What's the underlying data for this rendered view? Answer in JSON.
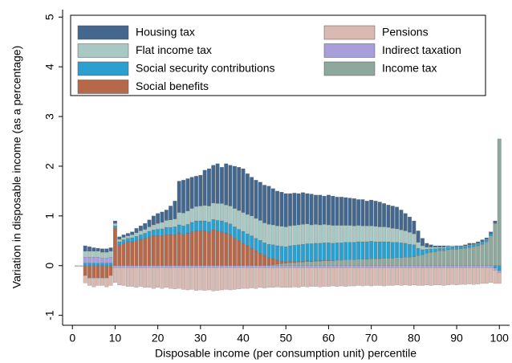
{
  "chart_data": {
    "type": "stacked_bar",
    "xlabel": "Disposable income (per consumption unit) percentile",
    "ylabel": "Variation in disposable income (as a percentage)",
    "xlim": [
      -2.3,
      102.4
    ],
    "ylim": [
      -1.2,
      5.15
    ],
    "xticks": [
      0,
      10,
      20,
      30,
      40,
      50,
      60,
      70,
      80,
      90,
      100
    ],
    "yticks": [
      -1,
      0,
      1,
      2,
      3,
      4,
      5
    ],
    "x": [
      1,
      2,
      3,
      4,
      5,
      6,
      7,
      8,
      9,
      10,
      11,
      12,
      13,
      14,
      15,
      16,
      17,
      18,
      19,
      20,
      21,
      22,
      23,
      24,
      25,
      26,
      27,
      28,
      29,
      30,
      31,
      32,
      33,
      34,
      35,
      36,
      37,
      38,
      39,
      40,
      41,
      42,
      43,
      44,
      45,
      46,
      47,
      48,
      49,
      50,
      51,
      52,
      53,
      54,
      55,
      56,
      57,
      58,
      59,
      60,
      61,
      62,
      63,
      64,
      65,
      66,
      67,
      68,
      69,
      70,
      71,
      72,
      73,
      74,
      75,
      76,
      77,
      78,
      79,
      80,
      81,
      82,
      83,
      84,
      85,
      86,
      87,
      88,
      89,
      90,
      91,
      92,
      93,
      94,
      95,
      96,
      97,
      98,
      99,
      100
    ],
    "series": [
      {
        "name": "Income tax",
        "color": "#8fa89d",
        "values": [
          0,
          0,
          0,
          0,
          0,
          0,
          0,
          0,
          0,
          0,
          0,
          0,
          0,
          0,
          0,
          0,
          0,
          0,
          0,
          0,
          0,
          0,
          0,
          0,
          0,
          0,
          0,
          0,
          0,
          0,
          0,
          0,
          0,
          0,
          0,
          0,
          0,
          0,
          0,
          0,
          0,
          0,
          0,
          0,
          0,
          0.01,
          0.02,
          0.03,
          0.04,
          0.05,
          0.06,
          0.06,
          0.07,
          0.07,
          0.08,
          0.08,
          0.09,
          0.09,
          0.1,
          0.1,
          0.1,
          0.11,
          0.11,
          0.12,
          0.12,
          0.12,
          0.13,
          0.13,
          0.13,
          0.14,
          0.14,
          0.14,
          0.15,
          0.15,
          0.15,
          0.16,
          0.16,
          0.17,
          0.17,
          0.18,
          0.2,
          0.22,
          0.25,
          0.27,
          0.28,
          0.3,
          0.3,
          0.32,
          0.33,
          0.33,
          0.34,
          0.35,
          0.36,
          0.38,
          0.4,
          0.43,
          0.48,
          0.6,
          0.85,
          2.55
        ]
      },
      {
        "name": "Social benefits",
        "color": "#b5694a",
        "values": [
          0,
          0,
          -0.2,
          -0.25,
          -0.25,
          -0.25,
          -0.25,
          -0.25,
          -0.2,
          0.75,
          0.42,
          0.45,
          0.47,
          0.48,
          0.5,
          0.52,
          0.55,
          0.58,
          0.6,
          0.6,
          0.6,
          0.62,
          0.62,
          0.62,
          0.65,
          0.62,
          0.65,
          0.68,
          0.7,
          0.7,
          0.7,
          0.68,
          0.72,
          0.7,
          0.68,
          0.65,
          0.62,
          0.55,
          0.5,
          0.45,
          0.4,
          0.35,
          0.3,
          0.25,
          0.2,
          0.15,
          0.12,
          0.08,
          0.05,
          0.03,
          0.02,
          0.02,
          0.02,
          0.02,
          0.02,
          0.01,
          0.01,
          0.01,
          0.01,
          0.01,
          0,
          0,
          0,
          0,
          0,
          0,
          0,
          0,
          0,
          0,
          0,
          0,
          0,
          0,
          0,
          0,
          0,
          0,
          0,
          0,
          0,
          0,
          0,
          0,
          0,
          0,
          0,
          0,
          0,
          0,
          0,
          0,
          0,
          0,
          0,
          0,
          0,
          0,
          0,
          0
        ]
      },
      {
        "name": "Social security contributions",
        "color": "#2b9fcd",
        "values": [
          0,
          0,
          0.05,
          0.05,
          0.05,
          0.05,
          0.05,
          0.05,
          0.05,
          0.05,
          0.06,
          0.07,
          0.08,
          0.08,
          0.09,
          0.1,
          0.1,
          0.11,
          0.12,
          0.13,
          0.14,
          0.15,
          0.15,
          0.16,
          0.17,
          0.18,
          0.18,
          0.19,
          0.2,
          0.2,
          0.2,
          0.2,
          0.21,
          0.21,
          0.22,
          0.22,
          0.22,
          0.23,
          0.23,
          0.24,
          0.24,
          0.25,
          0.25,
          0.26,
          0.26,
          0.27,
          0.28,
          0.29,
          0.3,
          0.3,
          0.32,
          0.33,
          0.33,
          0.34,
          0.34,
          0.35,
          0.35,
          0.35,
          0.35,
          0.35,
          0.35,
          0.35,
          0.35,
          0.35,
          0.35,
          0.35,
          0.35,
          0.35,
          0.35,
          0.35,
          0.34,
          0.34,
          0.33,
          0.33,
          0.32,
          0.31,
          0.3,
          0.28,
          0.26,
          0.24,
          0.15,
          0.1,
          0.08,
          0.07,
          0.06,
          0.05,
          0.05,
          0.05,
          0.05,
          0.05,
          0.04,
          0.04,
          0.04,
          0.04,
          0.04,
          0.04,
          0.04,
          0.04,
          -0.05,
          -0.1
        ]
      },
      {
        "name": "Indirect taxation",
        "color": "#a89fda",
        "values": [
          0,
          0,
          0.12,
          0.12,
          0.12,
          0.12,
          0.1,
          0.1,
          0.12,
          -0.04,
          -0.04,
          -0.04,
          -0.04,
          -0.04,
          -0.04,
          -0.04,
          -0.04,
          -0.04,
          -0.04,
          -0.04,
          -0.04,
          -0.04,
          -0.04,
          -0.04,
          -0.04,
          -0.04,
          -0.04,
          -0.04,
          -0.04,
          -0.04,
          -0.04,
          -0.04,
          -0.04,
          -0.04,
          -0.04,
          -0.04,
          -0.04,
          -0.04,
          -0.04,
          -0.04,
          -0.04,
          -0.04,
          -0.04,
          -0.04,
          -0.04,
          -0.04,
          -0.04,
          -0.04,
          -0.04,
          -0.04,
          -0.04,
          -0.04,
          -0.04,
          -0.04,
          -0.04,
          -0.04,
          -0.04,
          -0.04,
          -0.04,
          -0.04,
          -0.04,
          -0.04,
          -0.04,
          -0.04,
          -0.04,
          -0.04,
          -0.04,
          -0.04,
          -0.04,
          -0.04,
          -0.04,
          -0.04,
          -0.04,
          -0.04,
          -0.04,
          -0.04,
          -0.04,
          -0.04,
          -0.04,
          -0.04,
          -0.04,
          -0.04,
          -0.04,
          -0.04,
          -0.04,
          -0.04,
          -0.04,
          -0.04,
          -0.04,
          -0.04,
          -0.04,
          -0.04,
          -0.04,
          -0.04,
          -0.04,
          -0.04,
          -0.04,
          -0.04,
          -0.04,
          -0.04
        ]
      },
      {
        "name": "Flat income tax",
        "color": "#a8c8c3",
        "values": [
          0,
          0,
          0.12,
          0.12,
          0.12,
          0.12,
          0.12,
          0.12,
          0.12,
          0.05,
          0.05,
          0.05,
          0.05,
          0.06,
          0.07,
          0.08,
          0.08,
          0.09,
          0.1,
          0.12,
          0.13,
          0.14,
          0.15,
          0.16,
          0.25,
          0.26,
          0.27,
          0.28,
          0.29,
          0.3,
          0.31,
          0.32,
          0.33,
          0.34,
          0.35,
          0.35,
          0.36,
          0.37,
          0.38,
          0.38,
          0.39,
          0.4,
          0.4,
          0.4,
          0.4,
          0.4,
          0.4,
          0.4,
          0.4,
          0.4,
          0.4,
          0.4,
          0.4,
          0.4,
          0.4,
          0.38,
          0.38,
          0.37,
          0.37,
          0.36,
          0.36,
          0.35,
          0.35,
          0.34,
          0.34,
          0.33,
          0.33,
          0.32,
          0.32,
          0.31,
          0.31,
          0.3,
          0.3,
          0.29,
          0.28,
          0.27,
          0.26,
          0.25,
          0.24,
          0.22,
          0.12,
          0.08,
          0.04,
          0.03,
          0.03,
          0.02,
          0.02,
          0.02,
          0.02,
          0.01,
          0.01,
          0.01,
          0.01,
          0.01,
          0.01,
          0.01,
          0.01,
          0,
          0,
          0
        ]
      },
      {
        "name": "Housing tax",
        "color": "#44688d",
        "values": [
          0,
          0,
          0.11,
          0.09,
          0.07,
          0.06,
          0.07,
          0.07,
          0.07,
          0.05,
          0.05,
          0.05,
          0.05,
          0.06,
          0.09,
          0.1,
          0.12,
          0.14,
          0.18,
          0.2,
          0.21,
          0.21,
          0.28,
          0.36,
          0.63,
          0.66,
          0.65,
          0.63,
          0.61,
          0.62,
          0.71,
          0.75,
          0.76,
          0.8,
          0.73,
          0.83,
          0.82,
          0.85,
          0.87,
          0.88,
          0.82,
          0.78,
          0.77,
          0.77,
          0.76,
          0.77,
          0.73,
          0.7,
          0.69,
          0.67,
          0.65,
          0.65,
          0.63,
          0.64,
          0.61,
          0.62,
          0.59,
          0.6,
          0.57,
          0.6,
          0.59,
          0.57,
          0.57,
          0.56,
          0.55,
          0.55,
          0.52,
          0.53,
          0.5,
          0.52,
          0.51,
          0.5,
          0.47,
          0.45,
          0.45,
          0.44,
          0.4,
          0.35,
          0.31,
          0.26,
          0.23,
          0.15,
          0.08,
          0.05,
          0.03,
          0.03,
          0.03,
          0.01,
          0,
          0.01,
          0.01,
          0.02,
          0.04,
          0.02,
          0.03,
          0.04,
          0.03,
          0.04,
          0.05,
          0
        ]
      },
      {
        "name": "Pensions",
        "color": "#d8bab3",
        "values": [
          -0.02,
          -0.02,
          -0.15,
          -0.15,
          -0.18,
          -0.15,
          -0.15,
          -0.18,
          -0.2,
          -0.3,
          -0.35,
          -0.36,
          -0.38,
          -0.38,
          -0.4,
          -0.38,
          -0.4,
          -0.4,
          -0.42,
          -0.4,
          -0.42,
          -0.4,
          -0.42,
          -0.43,
          -0.42,
          -0.44,
          -0.45,
          -0.44,
          -0.46,
          -0.45,
          -0.46,
          -0.45,
          -0.47,
          -0.46,
          -0.45,
          -0.44,
          -0.45,
          -0.44,
          -0.43,
          -0.42,
          -0.42,
          -0.41,
          -0.42,
          -0.4,
          -0.41,
          -0.4,
          -0.4,
          -0.39,
          -0.4,
          -0.4,
          -0.4,
          -0.39,
          -0.4,
          -0.38,
          -0.39,
          -0.38,
          -0.38,
          -0.39,
          -0.38,
          -0.38,
          -0.37,
          -0.38,
          -0.37,
          -0.38,
          -0.37,
          -0.37,
          -0.36,
          -0.37,
          -0.36,
          -0.37,
          -0.36,
          -0.36,
          -0.37,
          -0.36,
          -0.36,
          -0.35,
          -0.36,
          -0.35,
          -0.36,
          -0.35,
          -0.36,
          -0.36,
          -0.35,
          -0.36,
          -0.35,
          -0.35,
          -0.36,
          -0.35,
          -0.34,
          -0.35,
          -0.34,
          -0.34,
          -0.33,
          -0.34,
          -0.33,
          -0.32,
          -0.32,
          -0.3,
          -0.27,
          -0.22
        ]
      }
    ]
  }
}
